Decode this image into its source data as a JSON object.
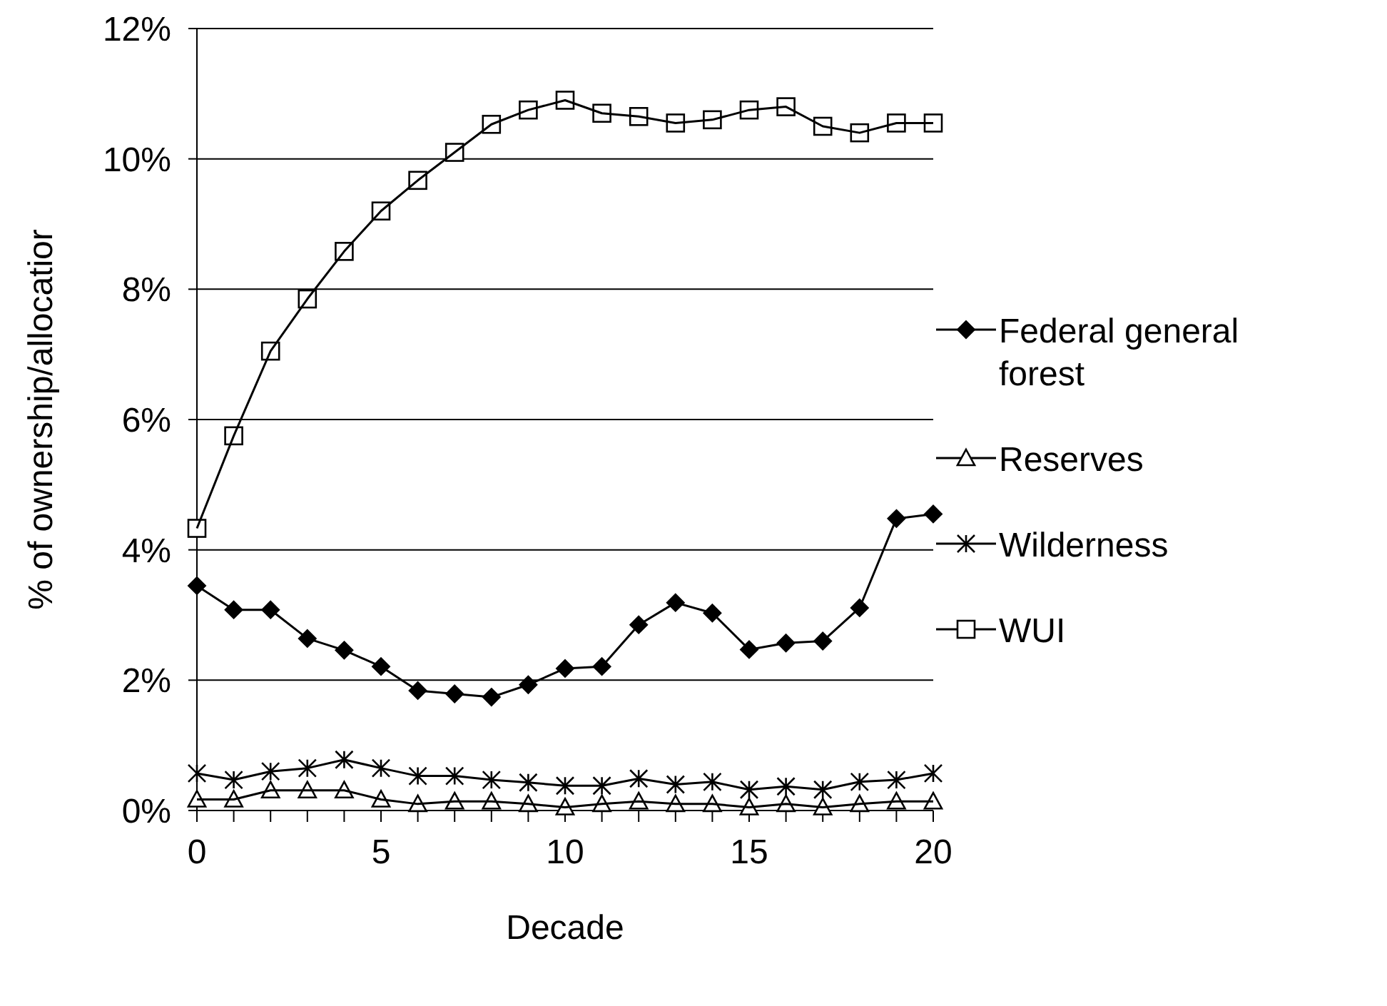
{
  "chart_data": {
    "type": "line",
    "xlabel": "Decade",
    "ylabel": "% of ownership/allocatior",
    "x": [
      0,
      1,
      2,
      3,
      4,
      5,
      6,
      7,
      8,
      9,
      10,
      11,
      12,
      13,
      14,
      15,
      16,
      17,
      18,
      19,
      20
    ],
    "xlim": [
      0,
      20
    ],
    "xticks": [
      0,
      {
        "value": 1,
        "label": null
      },
      {
        "value": 2,
        "label": null
      },
      {
        "value": 3,
        "label": null
      },
      {
        "value": 4,
        "label": null
      },
      5,
      {
        "value": 6,
        "label": null
      },
      {
        "value": 7,
        "label": null
      },
      {
        "value": 8,
        "label": null
      },
      {
        "value": 9,
        "label": null
      },
      10,
      {
        "value": 11,
        "label": null
      },
      {
        "value": 12,
        "label": null
      },
      {
        "value": 13,
        "label": null
      },
      {
        "value": 14,
        "label": null
      },
      15,
      {
        "value": 16,
        "label": null
      },
      {
        "value": 17,
        "label": null
      },
      {
        "value": 18,
        "label": null
      },
      {
        "value": 19,
        "label": null
      },
      20
    ],
    "ylim": [
      0,
      12
    ],
    "yticks": [
      {
        "value": 0,
        "label": "0%"
      },
      {
        "value": 2,
        "label": "2%"
      },
      {
        "value": 4,
        "label": "4%"
      },
      {
        "value": 6,
        "label": "6%"
      },
      {
        "value": 8,
        "label": "8%"
      },
      {
        "value": 10,
        "label": "10%"
      },
      {
        "value": 12,
        "label": "12%"
      }
    ],
    "grid": "y",
    "legend": "right",
    "line_style": "solid",
    "series": [
      {
        "name": "Federal general forest",
        "color": "#000000",
        "marker": "diamond",
        "values": [
          3.45,
          3.08,
          3.08,
          2.64,
          2.46,
          2.21,
          1.84,
          1.79,
          1.74,
          1.93,
          2.18,
          2.21,
          2.85,
          3.19,
          3.03,
          2.47,
          2.57,
          2.6,
          3.11,
          4.48,
          4.55
        ]
      },
      {
        "name": "Reserves",
        "color": "#000000",
        "marker": "triangle",
        "values": [
          0.17,
          0.17,
          0.31,
          0.31,
          0.31,
          0.17,
          0.1,
          0.14,
          0.14,
          0.1,
          0.05,
          0.1,
          0.14,
          0.1,
          0.1,
          0.05,
          0.1,
          0.05,
          0.1,
          0.14,
          0.14
        ]
      },
      {
        "name": "Wilderness",
        "color": "#000000",
        "marker": "cross",
        "values": [
          0.57,
          0.47,
          0.6,
          0.65,
          0.78,
          0.65,
          0.53,
          0.53,
          0.47,
          0.43,
          0.38,
          0.38,
          0.49,
          0.4,
          0.44,
          0.32,
          0.37,
          0.32,
          0.44,
          0.47,
          0.57
        ]
      },
      {
        "name": "WUI",
        "color": "#000000",
        "marker": "square",
        "values": [
          4.33,
          5.75,
          7.05,
          7.85,
          8.58,
          9.2,
          9.67,
          10.1,
          10.53,
          10.75,
          10.9,
          10.7,
          10.65,
          10.55,
          10.6,
          10.75,
          10.8,
          10.5,
          10.4,
          10.55,
          10.55
        ]
      }
    ]
  }
}
